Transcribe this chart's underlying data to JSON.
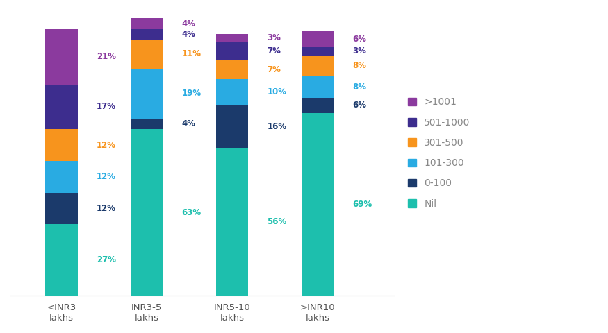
{
  "categories": [
    "<INR3\nlakhs",
    "INR3-5\nlakhs",
    "INR5-10\nlakhs",
    ">INR10\nlakhs"
  ],
  "series": {
    "Nil": [
      27,
      63,
      56,
      69
    ],
    "0-100": [
      12,
      4,
      16,
      6
    ],
    "101-300": [
      12,
      19,
      10,
      8
    ],
    "301-500": [
      12,
      11,
      7,
      8
    ],
    "501-1000": [
      17,
      4,
      7,
      3
    ],
    ">1001": [
      21,
      4,
      3,
      6
    ]
  },
  "colors": {
    "Nil": "#1DBFAD",
    "0-100": "#1B3A6B",
    "101-300": "#29ABE2",
    "301-500": "#F7941D",
    "501-1000": "#3D2D8E",
    ">1001": "#8B3A9E"
  },
  "label_colors": {
    "Nil": "#1DBFAD",
    "0-100": "#1B3A6B",
    "101-300": "#29ABE2",
    "301-500": "#F7941D",
    "501-1000": "#3D2D8E",
    ">1001": "#8B3A9E"
  },
  "legend_order": [
    ">1001",
    "501-1000",
    "301-500",
    "101-300",
    "0-100",
    "Nil"
  ],
  "legend_text_color": "#8B8B8B",
  "bar_width": 0.38,
  "figsize": [
    8.75,
    4.8
  ],
  "dpi": 100,
  "ylim": [
    0,
    108
  ]
}
